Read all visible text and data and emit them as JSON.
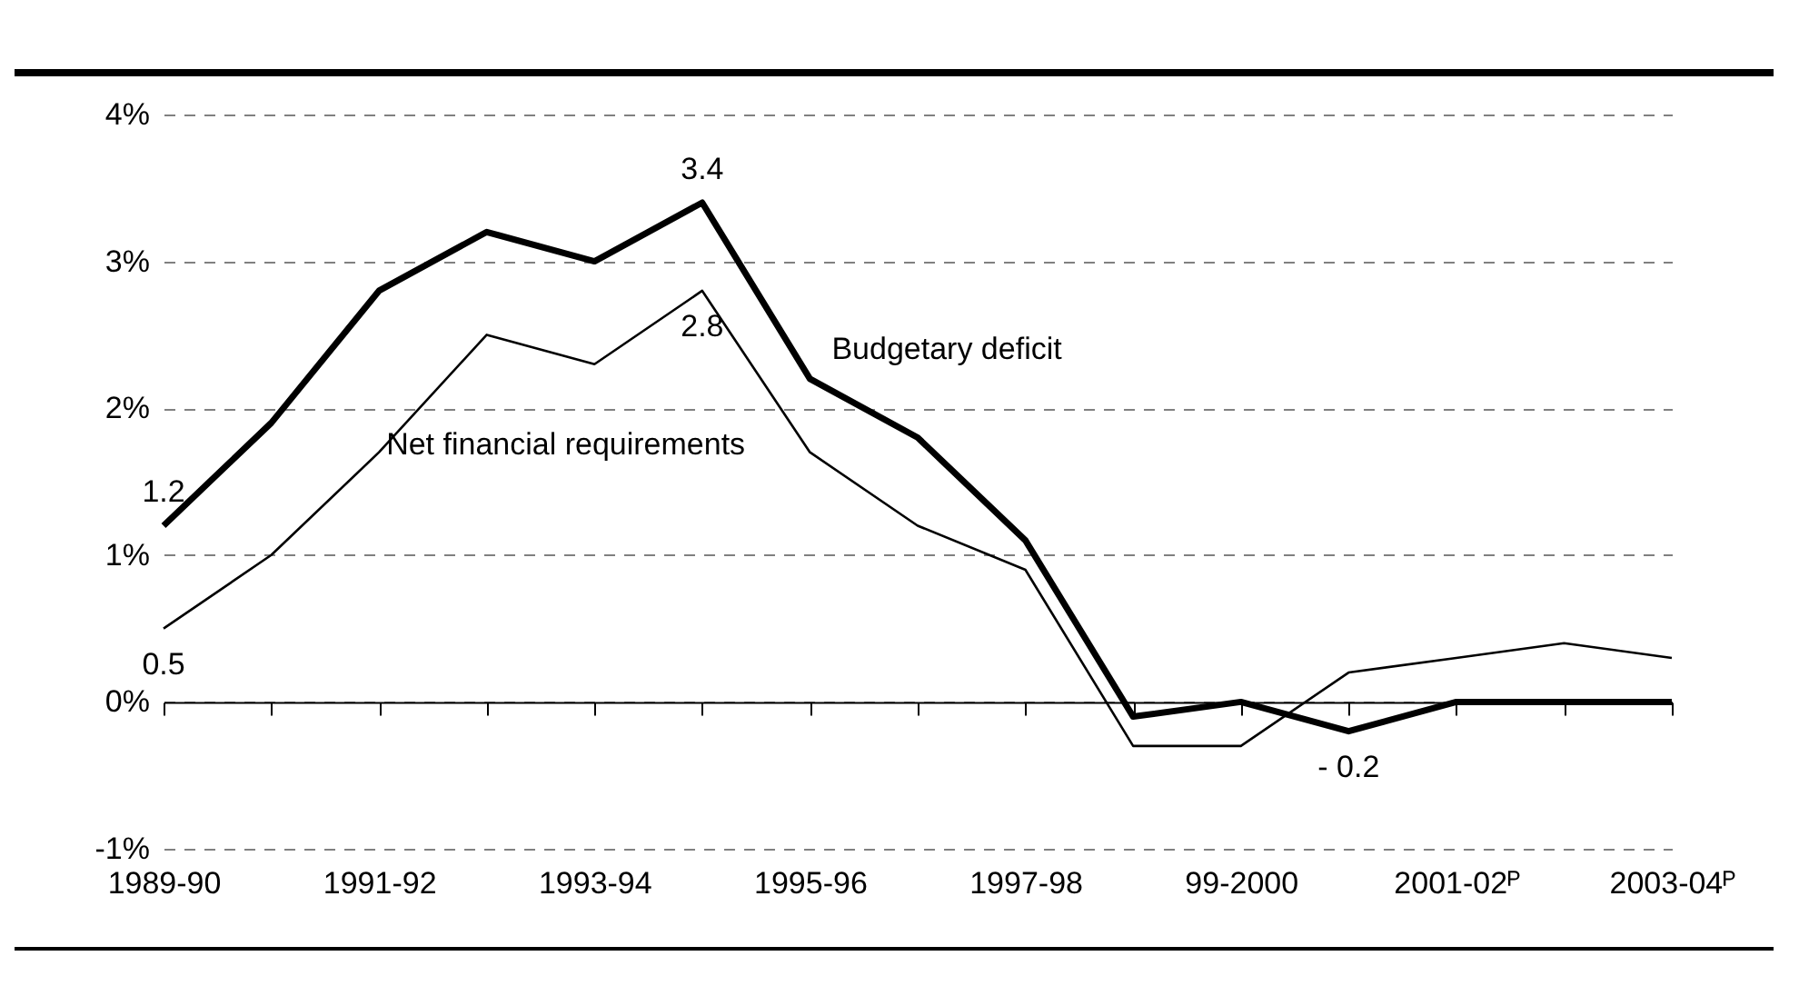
{
  "chart_data": {
    "type": "line",
    "categories": [
      "1989-90",
      null,
      "1991-92",
      null,
      "1993-94",
      null,
      "1995-96",
      null,
      "1997-98",
      null,
      "99-2000",
      null,
      "2001-02ᴾ",
      null,
      "2003-04ᴾ"
    ],
    "series": [
      {
        "name": "Budgetary deficit",
        "color": "#000000",
        "values": [
          1.2,
          1.9,
          2.8,
          3.2,
          3.0,
          3.4,
          2.2,
          1.8,
          1.1,
          -0.1,
          0.0,
          -0.2,
          0.0,
          0.0,
          0.0
        ],
        "value_labels": [
          "1.2",
          null,
          null,
          null,
          null,
          "3.4",
          null,
          null,
          null,
          null,
          null,
          "- 0.2",
          null,
          null,
          null
        ]
      },
      {
        "name": "Net financial requirements",
        "color": "#000000",
        "values": [
          0.5,
          1.0,
          1.7,
          2.5,
          2.3,
          2.8,
          1.7,
          1.2,
          0.9,
          -0.3,
          -0.3,
          0.2,
          0.3,
          0.4,
          0.3
        ],
        "value_labels": [
          "0.5",
          null,
          null,
          null,
          null,
          "2.8",
          null,
          null,
          null,
          null,
          null,
          null,
          null,
          null,
          null
        ]
      }
    ],
    "ylim": [
      -1,
      4
    ],
    "yticks": [
      {
        "value": -1,
        "label": "-1%"
      },
      {
        "value": 0,
        "label": "0%"
      },
      {
        "value": 1,
        "label": "1%"
      },
      {
        "value": 2,
        "label": "2%"
      },
      {
        "value": 3,
        "label": "3%"
      },
      {
        "value": 4,
        "label": "4%"
      }
    ],
    "grid": "y",
    "legend": false,
    "marker": "none",
    "line_style": "solid"
  }
}
